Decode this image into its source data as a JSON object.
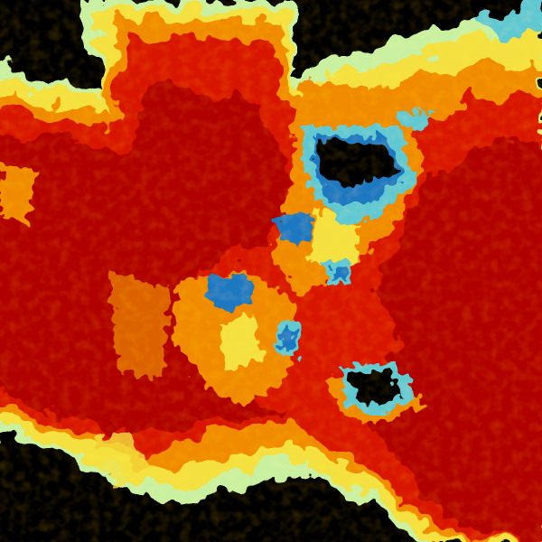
{
  "image": {
    "kind": "weather-radar-field",
    "colors": {
      "no_data": "#000000",
      "dark_red": "#b00000",
      "red": "#d81800",
      "orange": "#f08a00",
      "yellow": "#f4e040",
      "light_green": "#c8f0a0",
      "cyan": "#60c8d0",
      "blue": "#1a78c0"
    }
  }
}
